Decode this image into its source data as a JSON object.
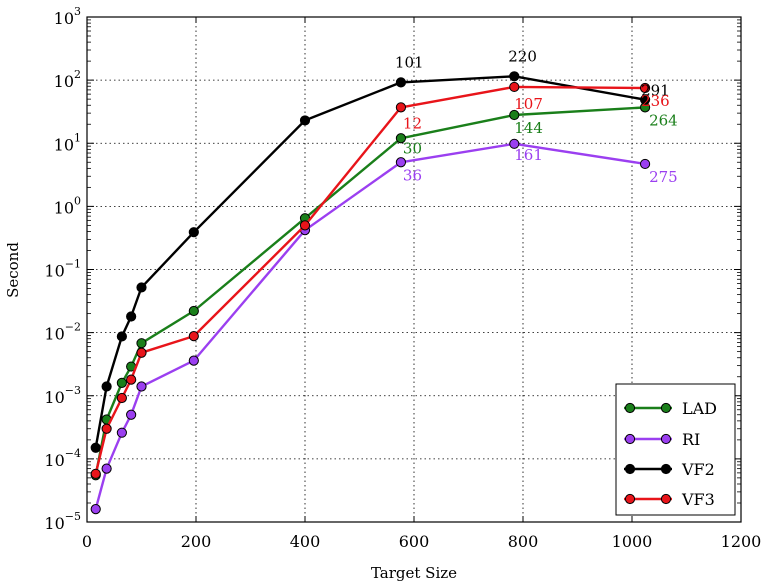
{
  "chart_data": {
    "type": "line",
    "xlabel": "Target Size",
    "ylabel": "Second",
    "xlim": [
      0,
      1200
    ],
    "ylim_log10": [
      -5,
      3
    ],
    "y_scale": "log",
    "grid": true,
    "legend_position": "bottom-right",
    "x_ticks": [
      "0",
      "200",
      "400",
      "600",
      "800",
      "1000",
      "1200"
    ],
    "y_ticks": [
      {
        "base": "10",
        "exp": "−5"
      },
      {
        "base": "10",
        "exp": "−4"
      },
      {
        "base": "10",
        "exp": "−3"
      },
      {
        "base": "10",
        "exp": "−2"
      },
      {
        "base": "10",
        "exp": "−1"
      },
      {
        "base": "10",
        "exp": "0"
      },
      {
        "base": "10",
        "exp": "1"
      },
      {
        "base": "10",
        "exp": "2"
      },
      {
        "base": "10",
        "exp": "3"
      }
    ],
    "series": [
      {
        "name": "LAD",
        "color": "#1a7f1a",
        "points": [
          [
            16,
            5.5e-05
          ],
          [
            36,
            0.00042
          ],
          [
            64,
            0.0016
          ],
          [
            81,
            0.0029
          ],
          [
            100,
            0.0068
          ],
          [
            196,
            0.022
          ],
          [
            400,
            0.65
          ],
          [
            576,
            12
          ],
          [
            784,
            28
          ],
          [
            1024,
            37
          ]
        ]
      },
      {
        "name": "RI",
        "color": "#9b3ff0",
        "points": [
          [
            16,
            1.6e-05
          ],
          [
            36,
            7e-05
          ],
          [
            64,
            0.00026
          ],
          [
            81,
            0.0005
          ],
          [
            100,
            0.0014
          ],
          [
            196,
            0.0036
          ],
          [
            400,
            0.42
          ],
          [
            576,
            5
          ],
          [
            784,
            9.8
          ],
          [
            1024,
            4.7
          ]
        ]
      },
      {
        "name": "VF2",
        "color": "#000000",
        "points": [
          [
            16,
            0.00015
          ],
          [
            36,
            0.0014
          ],
          [
            64,
            0.0087
          ],
          [
            81,
            0.018
          ],
          [
            100,
            0.052
          ],
          [
            196,
            0.39
          ],
          [
            400,
            23
          ],
          [
            576,
            92
          ],
          [
            784,
            115
          ],
          [
            1024,
            49
          ]
        ]
      },
      {
        "name": "VF3",
        "color": "#e8141a",
        "points": [
          [
            16,
            5.8e-05
          ],
          [
            36,
            0.0003
          ],
          [
            64,
            0.00092
          ],
          [
            81,
            0.0018
          ],
          [
            100,
            0.0048
          ],
          [
            196,
            0.0088
          ],
          [
            400,
            0.5
          ],
          [
            576,
            37
          ],
          [
            784,
            78
          ],
          [
            1024,
            75
          ]
        ]
      }
    ],
    "annotations": [
      {
        "text": "101",
        "series": "VF2",
        "x": 576,
        "y": 92
      },
      {
        "text": "220",
        "series": "VF2",
        "x": 784,
        "y": 115
      },
      {
        "text": "291",
        "series": "VF2",
        "x": 1024,
        "y": 49
      },
      {
        "text": "12",
        "series": "VF3",
        "x": 576,
        "y": 37
      },
      {
        "text": "107",
        "series": "VF3",
        "x": 784,
        "y": 78
      },
      {
        "text": "236",
        "series": "VF3",
        "x": 1024,
        "y": 75
      },
      {
        "text": "30",
        "series": "LAD",
        "x": 576,
        "y": 12
      },
      {
        "text": "144",
        "series": "LAD",
        "x": 784,
        "y": 28
      },
      {
        "text": "264",
        "series": "LAD",
        "x": 1024,
        "y": 37
      },
      {
        "text": "36",
        "series": "RI",
        "x": 576,
        "y": 5
      },
      {
        "text": "161",
        "series": "RI",
        "x": 784,
        "y": 9.8
      },
      {
        "text": "275",
        "series": "RI",
        "x": 1024,
        "y": 4.7
      }
    ]
  }
}
